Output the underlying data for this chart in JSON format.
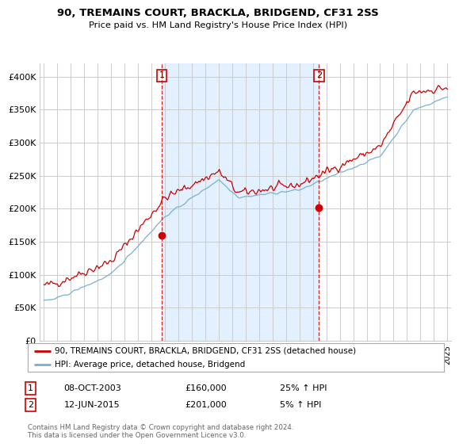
{
  "title1": "90, TREMAINS COURT, BRACKLA, BRIDGEND, CF31 2SS",
  "title2": "Price paid vs. HM Land Registry's House Price Index (HPI)",
  "ylim": [
    0,
    420000
  ],
  "yticks": [
    0,
    50000,
    100000,
    150000,
    200000,
    250000,
    300000,
    350000,
    400000
  ],
  "legend1": "90, TREMAINS COURT, BRACKLA, BRIDGEND, CF31 2SS (detached house)",
  "legend2": "HPI: Average price, detached house, Bridgend",
  "footer": "Contains HM Land Registry data © Crown copyright and database right 2024.\nThis data is licensed under the Open Government Licence v3.0.",
  "sale1_date": "08-OCT-2003",
  "sale1_price": 160000,
  "sale1_hpi": "25% ↑ HPI",
  "sale2_date": "12-JUN-2015",
  "sale2_price": 201000,
  "sale2_hpi": "5% ↑ HPI",
  "vline1_year": 2003.77,
  "vline2_year": 2015.45,
  "red_color": "#cc0000",
  "blue_color": "#7ab0d4",
  "shade_color": "#ddeeff",
  "vline_color": "#cc0000",
  "grid_color": "#cccccc",
  "bg_color": "#ffffff",
  "sale1_marker_year": 2003.77,
  "sale1_marker_val": 160000,
  "sale2_marker_year": 2015.45,
  "sale2_marker_val": 201000
}
